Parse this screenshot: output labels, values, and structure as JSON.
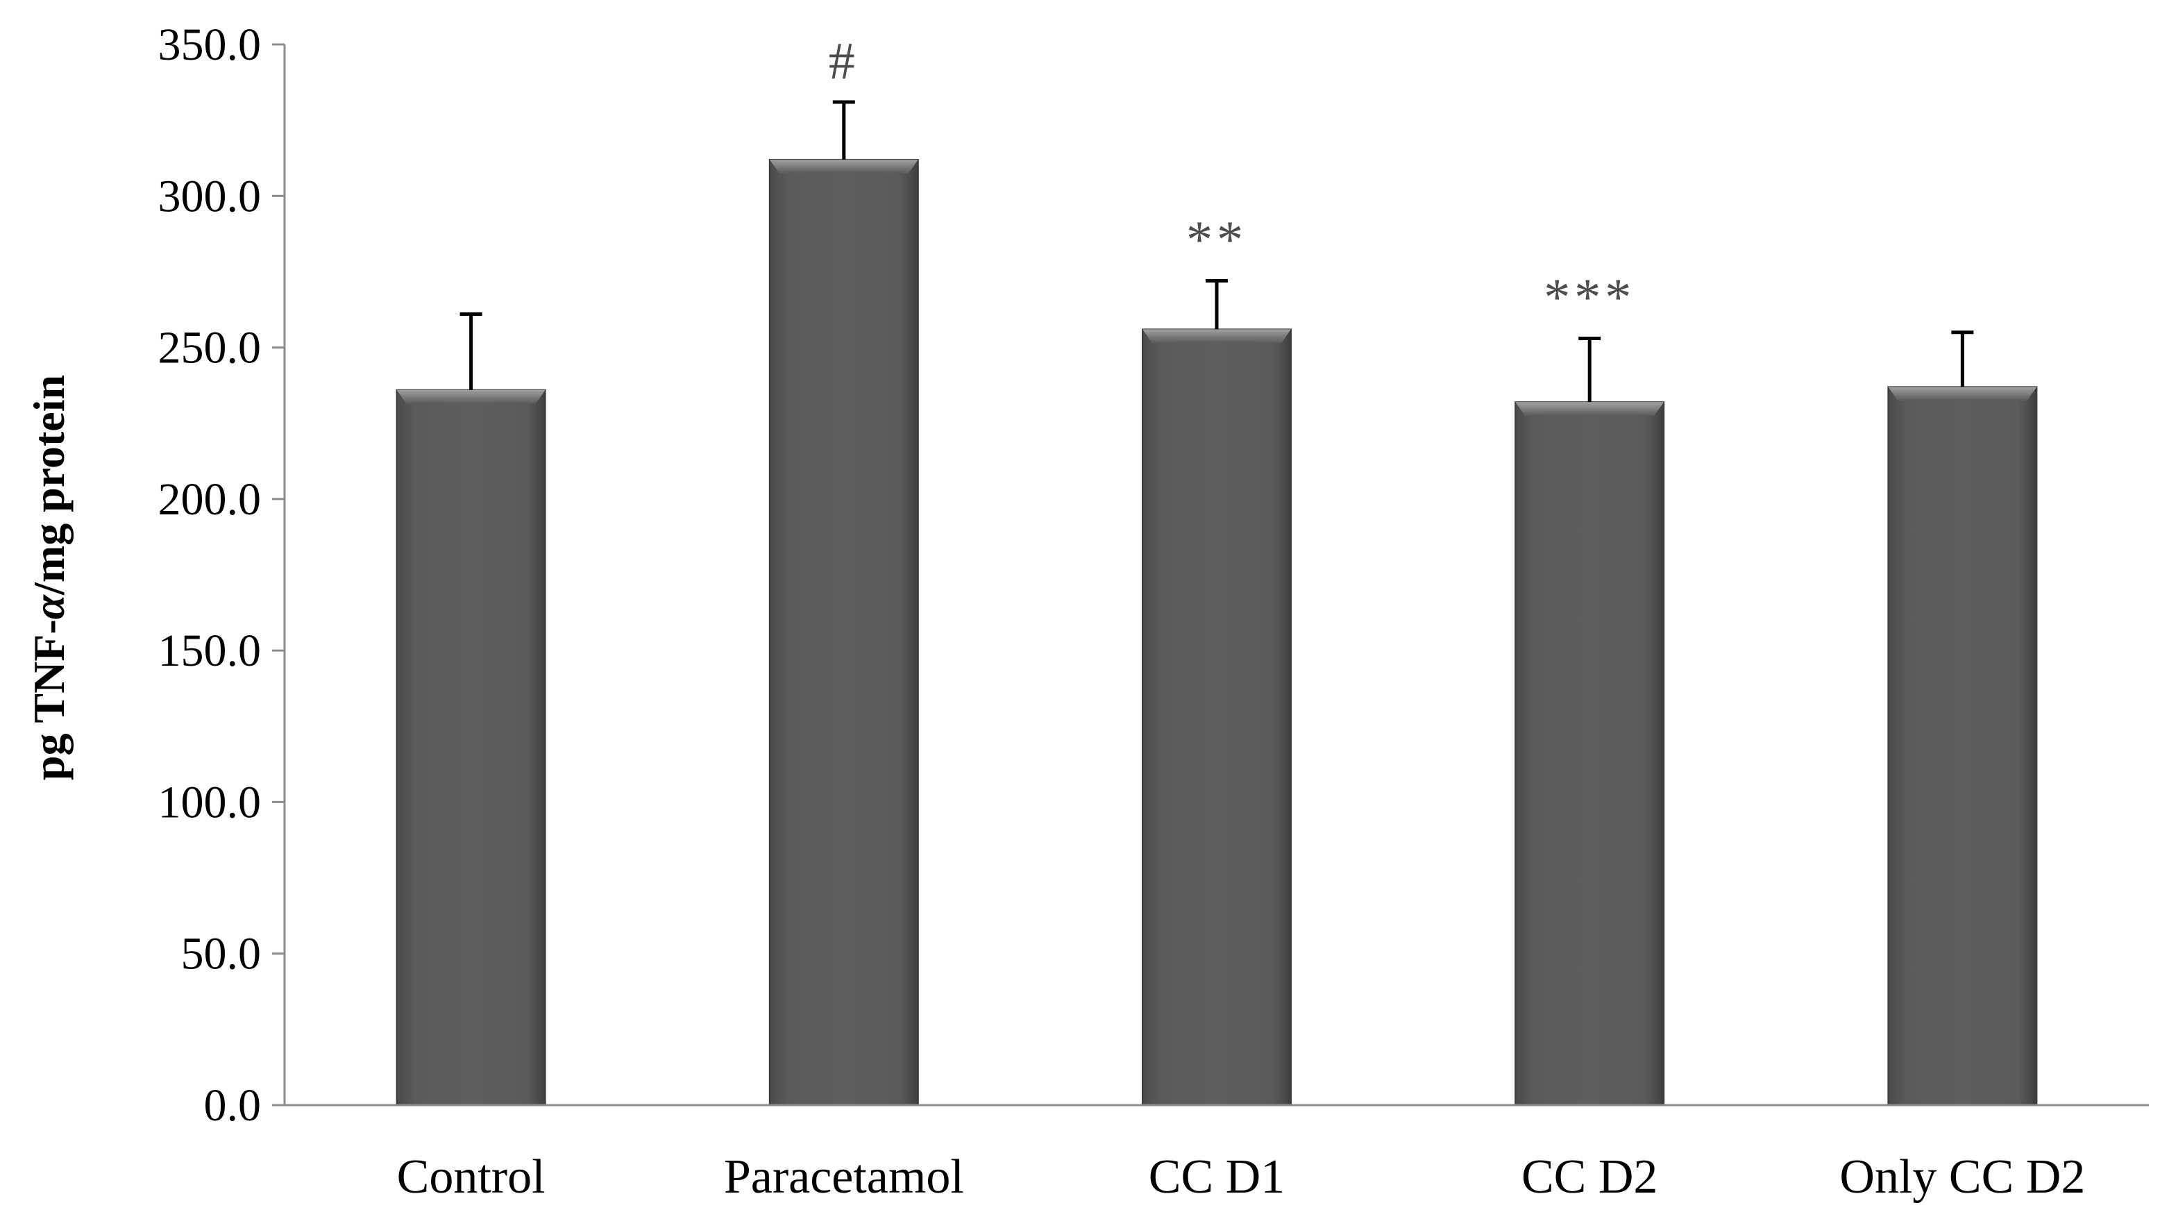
{
  "chart_data": {
    "type": "bar",
    "title": "",
    "xlabel": "",
    "ylabel_prefix": "pg TNF-",
    "ylabel_symbol": "α",
    "ylabel_suffix": "/mg protein",
    "ylim": [
      0,
      350
    ],
    "ytick_step": 50,
    "ytick_labels": [
      "0.0",
      "50.0",
      "100.0",
      "150.0",
      "200.0",
      "250.0",
      "300.0",
      "350.0"
    ],
    "grid": false,
    "legend": "none",
    "categories": [
      "Control",
      "Paracetamol",
      "CC D1",
      "CC D2",
      "Only CC D2"
    ],
    "values": [
      236,
      312,
      256,
      232,
      237
    ],
    "errors": [
      25,
      19,
      16,
      21,
      18
    ],
    "annotations": [
      "",
      "#",
      "**",
      "***",
      ""
    ],
    "colors": {
      "bar": "#595959",
      "bar_highlight": "#8a8a8a",
      "bar_edge": "#3a3a3a",
      "axis": "#8c8c8c",
      "text": "#000000",
      "annotation": "#4d4d4d"
    }
  }
}
